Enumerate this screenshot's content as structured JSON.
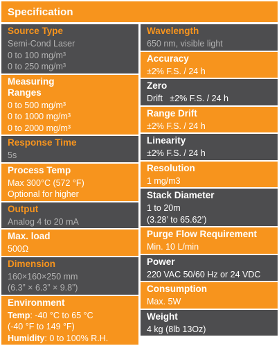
{
  "header": {
    "title": "Specification"
  },
  "left": [
    {
      "key": "source_type",
      "title": "Source Type",
      "values": [
        "Semi-Cond Laser",
        "0 to 100 mg/m³",
        "0 to 250 mg/m³"
      ]
    },
    {
      "key": "measuring_ranges",
      "title_lines": [
        "Measuring",
        "Ranges"
      ],
      "values": [
        "0 to 500 mg/m³",
        "0 to 1000 mg/m³",
        "0 to 2000 mg/m³"
      ]
    },
    {
      "key": "response_time",
      "title": "Response Time",
      "values": [
        "5s"
      ]
    },
    {
      "key": "process_temp",
      "title": "Process Temp",
      "values": [
        "Max 300°C (572 °F)",
        "Optional for higher"
      ]
    },
    {
      "key": "output",
      "title": "Output",
      "values": [
        "Analog 4 to 20 mA"
      ]
    },
    {
      "key": "max_load",
      "title": "Max. load",
      "values": [
        "500Ω"
      ]
    },
    {
      "key": "dimension",
      "title": "Dimension",
      "values": [
        "160×160×250 mm",
        "(6.3” × 6.3” × 9.8”)"
      ]
    },
    {
      "key": "environment",
      "title": "Environment",
      "temp_label": "Temp",
      "temp_value": ": -40 °C to 65 °C",
      "temp_value2": "(-40 °F to 149 °F)",
      "humidity_label": "Humidity",
      "humidity_value": ": 0 to 100% R.H."
    }
  ],
  "right": [
    {
      "key": "wavelength",
      "title": "Wavelength",
      "values": [
        "650 nm, visible light"
      ]
    },
    {
      "key": "accuracy",
      "title": "Accuracy",
      "values": [
        "±2% F.S. / 24 h"
      ]
    },
    {
      "key": "zero",
      "title": "Zero",
      "values": [
        "Drift   ±2% F.S. / 24 h"
      ]
    },
    {
      "key": "range_drift",
      "title": "Range Drift",
      "values": [
        "±2% F.S. / 24 h"
      ]
    },
    {
      "key": "linearity",
      "title": "Linearity",
      "values": [
        "±2% F.S. / 24 h"
      ]
    },
    {
      "key": "resolution",
      "title": "Resolution",
      "values": [
        "1 mg/m3"
      ]
    },
    {
      "key": "stack_diameter",
      "title": "Stack Diameter",
      "values": [
        "1 to 20m",
        "(3.28’ to 65.62’)"
      ]
    },
    {
      "key": "purge_flow",
      "title": "Purge Flow Requirement",
      "values": [
        "Min. 10 L/min"
      ]
    },
    {
      "key": "power",
      "title": "Power",
      "values": [
        "220 VAC 50/60 Hz or 24 VDC"
      ]
    },
    {
      "key": "consumption",
      "title": "Consumption",
      "values": [
        "Max. 5W"
      ]
    },
    {
      "key": "weight",
      "title": "Weight",
      "values": [
        "4 kg (8lb 13Oz)"
      ]
    }
  ]
}
